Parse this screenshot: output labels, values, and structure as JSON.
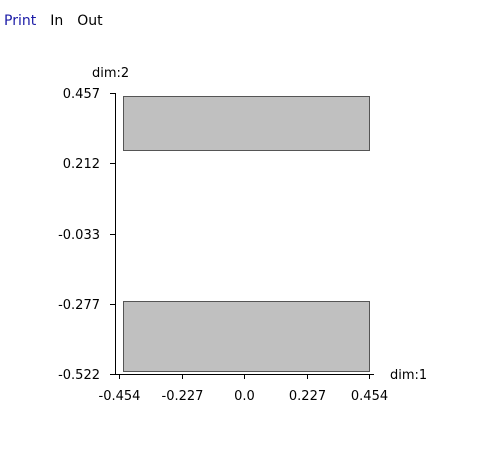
{
  "toolbar": {
    "print_label": "Print",
    "in_label": "In",
    "out_label": "Out"
  },
  "colors": {
    "link": "#1a1aa6",
    "bar_fill": "#c0c0c0",
    "bar_stroke": "#555555",
    "axis": "#000000"
  },
  "chart_data": {
    "type": "bar",
    "title": "",
    "xlabel": "dim:1",
    "ylabel": "dim:2",
    "xlim": [
      -0.454,
      0.454
    ],
    "ylim": [
      -0.522,
      0.457
    ],
    "x_ticks": [
      "-0.454",
      "-0.227",
      "0.0",
      "0.227",
      "0.454"
    ],
    "x_tick_values": [
      -0.454,
      -0.227,
      0.0,
      0.227,
      0.454
    ],
    "y_ticks": [
      "0.457",
      "0.212",
      "-0.033",
      "-0.277",
      "-0.522"
    ],
    "y_tick_values": [
      0.457,
      0.212,
      -0.033,
      -0.277,
      -0.522
    ],
    "orientation": "horizontal",
    "bars": [
      {
        "x_start": -0.44,
        "x_end": 0.454,
        "y_bottom": 0.26,
        "y_top": 0.447
      },
      {
        "x_start": -0.44,
        "x_end": 0.454,
        "y_bottom": -0.512,
        "y_top": -0.267
      }
    ],
    "grid": false,
    "legend": "none"
  }
}
